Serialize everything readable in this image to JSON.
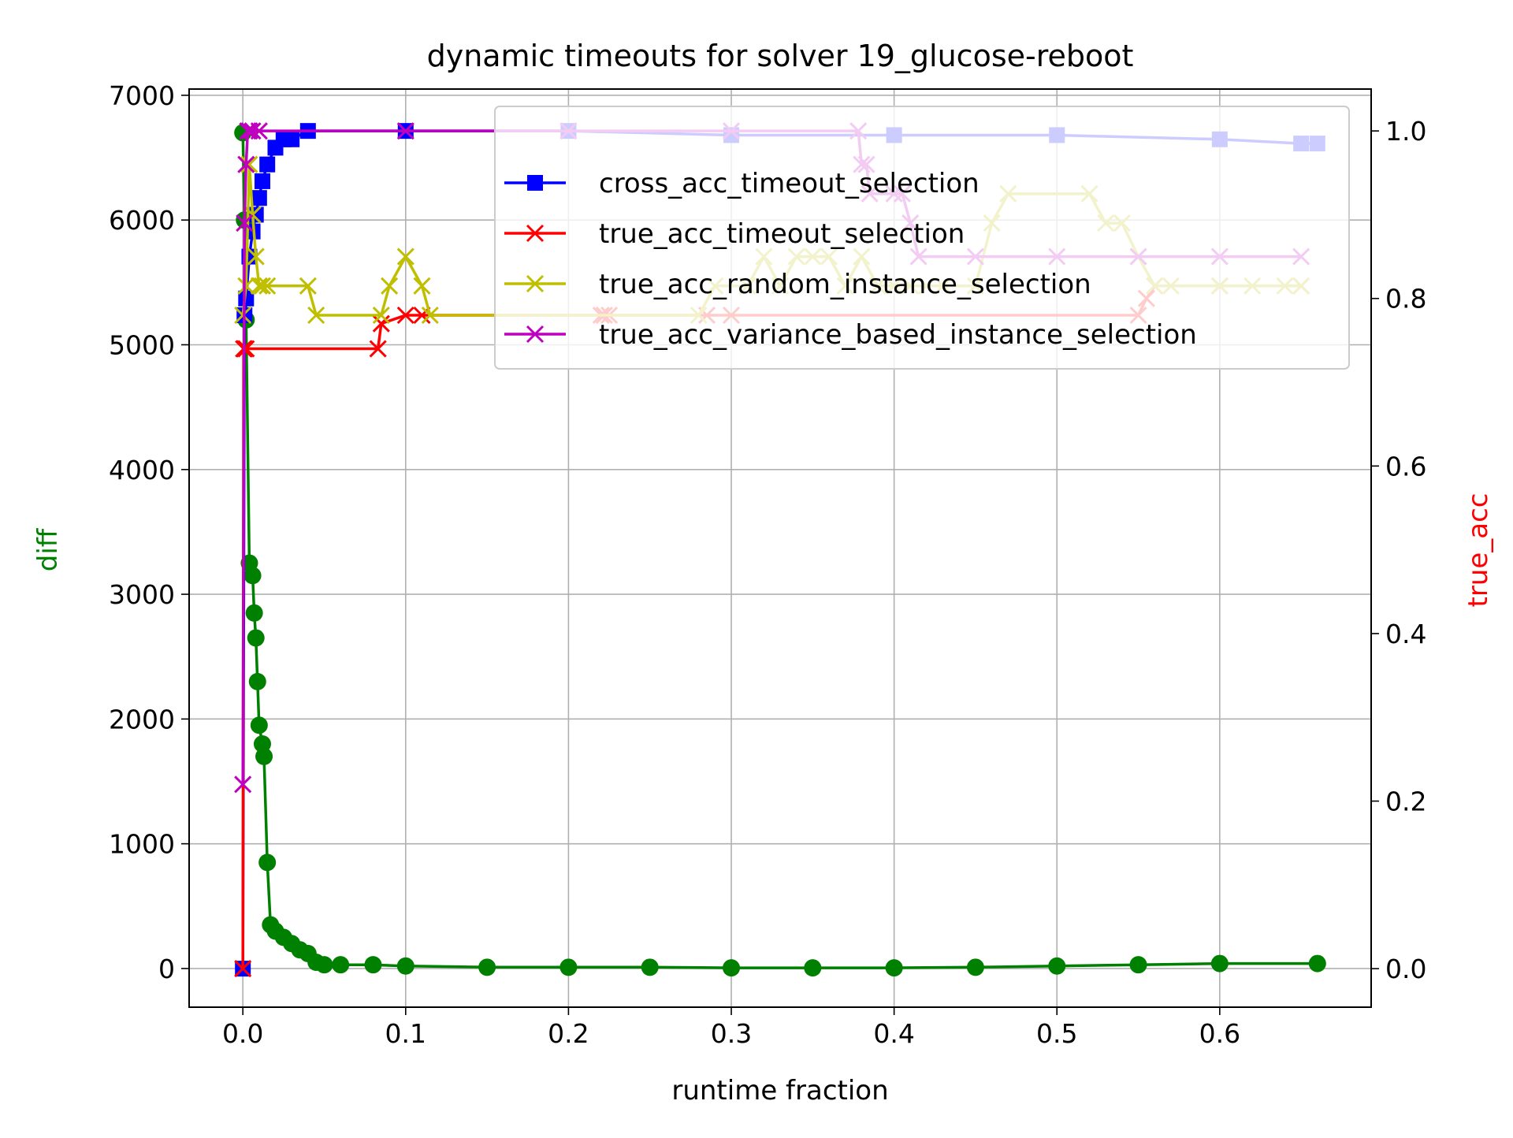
{
  "chart_data": {
    "type": "line",
    "title": "dynamic timeouts for solver 19_glucose-reboot",
    "xlabel": "runtime fraction",
    "ylabel_left": "diff",
    "ylabel_right": "true_acc",
    "ylabel_left_color": "#008000",
    "ylabel_right_color": "#ff0000",
    "xlim": [
      -0.033,
      0.693
    ],
    "ylim_left": [
      -310,
      7050
    ],
    "ylim_right": [
      -0.046,
      1.05
    ],
    "grid": true,
    "legend_position": "upper-right",
    "x_ticks": [
      0.0,
      0.1,
      0.2,
      0.3,
      0.4,
      0.5,
      0.6
    ],
    "x_tick_labels": [
      "0.0",
      "0.1",
      "0.2",
      "0.3",
      "0.4",
      "0.5",
      "0.6"
    ],
    "left_ticks": [
      0,
      1000,
      2000,
      3000,
      4000,
      5000,
      6000,
      7000
    ],
    "left_tick_labels": [
      "0",
      "1000",
      "2000",
      "3000",
      "4000",
      "5000",
      "6000",
      "7000"
    ],
    "right_ticks": [
      0.0,
      0.2,
      0.4,
      0.6,
      0.8,
      1.0
    ],
    "right_tick_labels": [
      "0.0",
      "0.2",
      "0.4",
      "0.6",
      "0.8",
      "1.0"
    ],
    "diff_series": {
      "axis": "left",
      "color": "#008000",
      "marker": "circle",
      "x": [
        0.0,
        0.001,
        0.002,
        0.004,
        0.006,
        0.007,
        0.008,
        0.009,
        0.01,
        0.012,
        0.013,
        0.015,
        0.017,
        0.02,
        0.025,
        0.03,
        0.035,
        0.04,
        0.045,
        0.05,
        0.06,
        0.08,
        0.1,
        0.15,
        0.2,
        0.25,
        0.3,
        0.35,
        0.4,
        0.45,
        0.5,
        0.55,
        0.6,
        0.66
      ],
      "y": [
        6700,
        6000,
        5200,
        3250,
        3150,
        2850,
        2650,
        2300,
        1950,
        1800,
        1700,
        850,
        350,
        300,
        250,
        200,
        150,
        120,
        50,
        30,
        30,
        30,
        20,
        10,
        10,
        10,
        5,
        5,
        5,
        10,
        20,
        30,
        40,
        40
      ]
    },
    "series": [
      {
        "name": "cross_acc_timeout_selection",
        "axis": "right",
        "color": "#0000ff",
        "marker": "square",
        "x": [
          0.0,
          0.001,
          0.002,
          0.004,
          0.006,
          0.008,
          0.01,
          0.012,
          0.015,
          0.02,
          0.025,
          0.03,
          0.04,
          0.1,
          0.2,
          0.3,
          0.4,
          0.5,
          0.6,
          0.65,
          0.66
        ],
        "y": [
          0.0,
          0.78,
          0.8,
          0.85,
          0.88,
          0.9,
          0.92,
          0.94,
          0.96,
          0.98,
          0.99,
          0.99,
          1.0,
          1.0,
          1.0,
          0.995,
          0.995,
          0.995,
          0.99,
          0.985,
          0.985
        ]
      },
      {
        "name": "true_acc_timeout_selection",
        "axis": "right",
        "color": "#ff0000",
        "marker": "x",
        "x": [
          0.0,
          0.0005,
          0.001,
          0.002,
          0.083,
          0.085,
          0.1,
          0.11,
          0.22,
          0.222,
          0.225,
          0.285,
          0.3,
          0.55,
          0.555,
          0.56,
          0.6,
          0.65
        ],
        "y": [
          0.0,
          0.74,
          0.74,
          0.74,
          0.74,
          0.77,
          0.78,
          0.78,
          0.78,
          0.78,
          0.78,
          0.78,
          0.78,
          0.78,
          0.8,
          0.815,
          0.815,
          0.815
        ]
      },
      {
        "name": "true_acc_random_instance_selection",
        "axis": "right",
        "color": "#bfbf00",
        "marker": "x",
        "x": [
          0.0,
          0.002,
          0.004,
          0.006,
          0.008,
          0.01,
          0.012,
          0.015,
          0.04,
          0.045,
          0.085,
          0.09,
          0.1,
          0.11,
          0.115,
          0.28,
          0.29,
          0.31,
          0.32,
          0.33,
          0.34,
          0.35,
          0.36,
          0.37,
          0.38,
          0.39,
          0.4,
          0.41,
          0.42,
          0.43,
          0.45,
          0.46,
          0.47,
          0.52,
          0.53,
          0.54,
          0.55,
          0.56,
          0.57,
          0.6,
          0.62,
          0.64,
          0.65
        ],
        "y": [
          0.78,
          0.815,
          0.96,
          0.9,
          0.85,
          0.815,
          0.815,
          0.815,
          0.815,
          0.78,
          0.78,
          0.815,
          0.85,
          0.815,
          0.78,
          0.78,
          0.815,
          0.815,
          0.85,
          0.815,
          0.85,
          0.85,
          0.85,
          0.815,
          0.85,
          0.815,
          0.815,
          0.815,
          0.815,
          0.815,
          0.815,
          0.89,
          0.925,
          0.925,
          0.89,
          0.89,
          0.85,
          0.815,
          0.815,
          0.815,
          0.815,
          0.815,
          0.815
        ]
      },
      {
        "name": "true_acc_variance_based_instance_selection",
        "axis": "right",
        "color": "#bf00bf",
        "marker": "x",
        "x": [
          0.0,
          0.001,
          0.002,
          0.003,
          0.004,
          0.006,
          0.01,
          0.1,
          0.2,
          0.3,
          0.378,
          0.38,
          0.383,
          0.385,
          0.4,
          0.405,
          0.41,
          0.415,
          0.45,
          0.5,
          0.55,
          0.6,
          0.65
        ],
        "y": [
          0.22,
          0.89,
          0.96,
          1.0,
          1.0,
          1.0,
          1.0,
          1.0,
          1.0,
          1.0,
          1.0,
          0.96,
          0.96,
          0.925,
          0.925,
          0.925,
          0.89,
          0.85,
          0.85,
          0.85,
          0.85,
          0.85,
          0.85
        ]
      }
    ]
  }
}
